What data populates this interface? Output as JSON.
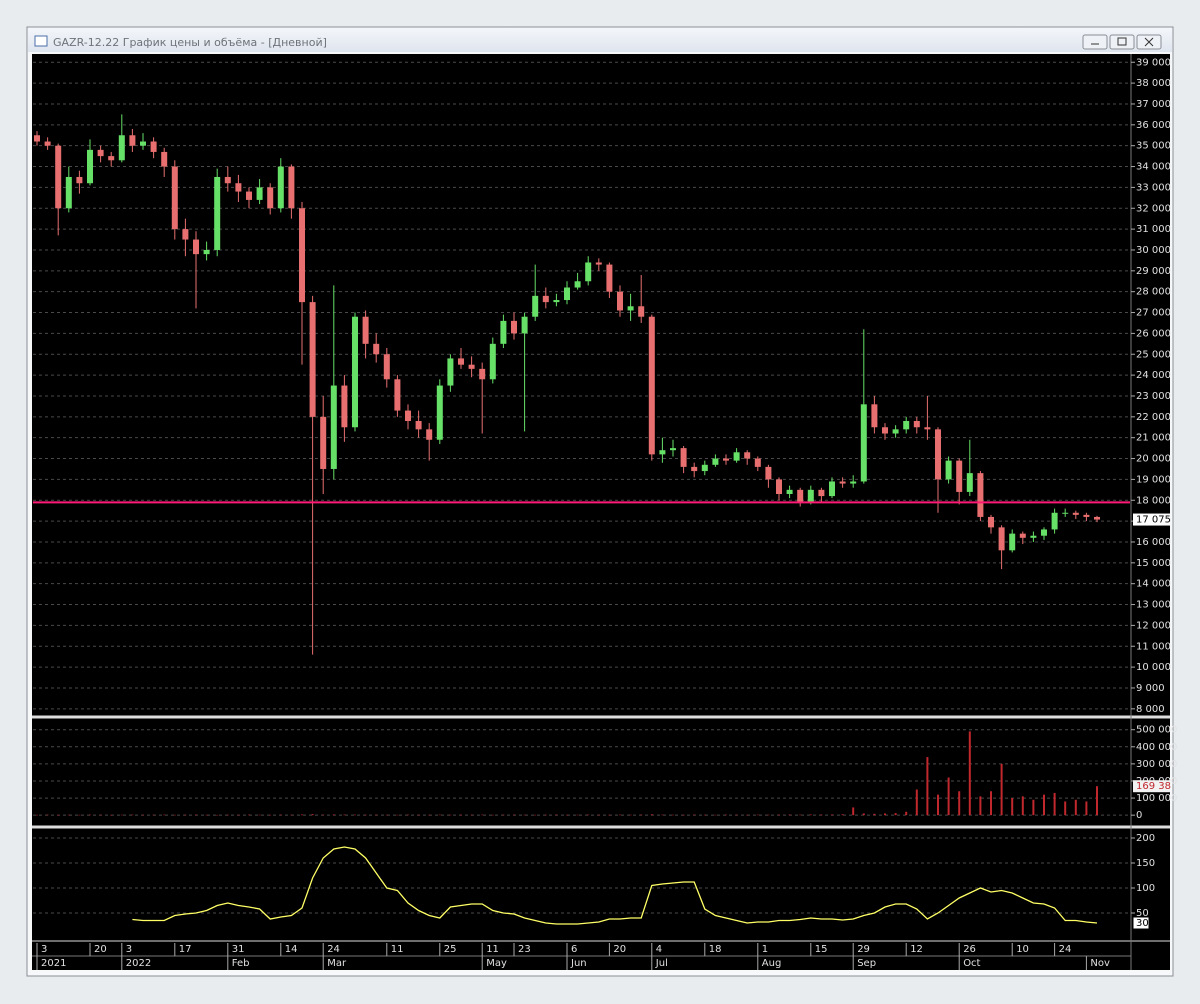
{
  "window": {
    "title": "GAZR-12.22 График цены и объёма - [Дневной]"
  },
  "chart_data": [
    {
      "type": "candlestick",
      "up_color": "#66e066",
      "down_color": "#e86f6f",
      "grid": true,
      "ylim": [
        7800,
        39300
      ],
      "yticks": [
        {
          "value": 8000,
          "label": "8 000"
        },
        {
          "value": 9000,
          "label": "9 000"
        },
        {
          "value": 10000,
          "label": "10 000"
        },
        {
          "value": 11000,
          "label": "11 000"
        },
        {
          "value": 12000,
          "label": "12 000"
        },
        {
          "value": 13000,
          "label": "13 000"
        },
        {
          "value": 14000,
          "label": "14 000"
        },
        {
          "value": 15000,
          "label": "15 000"
        },
        {
          "value": 16000,
          "label": "16 000"
        },
        {
          "value": 17000,
          "label": "17 000"
        },
        {
          "value": 18000,
          "label": "18 000"
        },
        {
          "value": 19000,
          "label": "19 000"
        },
        {
          "value": 20000,
          "label": "20 000"
        },
        {
          "value": 21000,
          "label": "21 000"
        },
        {
          "value": 22000,
          "label": "22 000"
        },
        {
          "value": 23000,
          "label": "23 000"
        },
        {
          "value": 24000,
          "label": "24 000"
        },
        {
          "value": 25000,
          "label": "25 000"
        },
        {
          "value": 26000,
          "label": "26 000"
        },
        {
          "value": 27000,
          "label": "27 000"
        },
        {
          "value": 28000,
          "label": "28 000"
        },
        {
          "value": 29000,
          "label": "29 000"
        },
        {
          "value": 30000,
          "label": "30 000"
        },
        {
          "value": 31000,
          "label": "31 000"
        },
        {
          "value": 32000,
          "label": "32 000"
        },
        {
          "value": 33000,
          "label": "33 000"
        },
        {
          "value": 34000,
          "label": "34 000"
        },
        {
          "value": 35000,
          "label": "35 000"
        },
        {
          "value": 36000,
          "label": "36 000"
        },
        {
          "value": 37000,
          "label": "37 000"
        },
        {
          "value": 38000,
          "label": "38 000"
        },
        {
          "value": 39000,
          "label": "39 000"
        }
      ],
      "hline": 17900,
      "hline_color": "#ff1a75",
      "last_label": "17 075",
      "categories": [
        "3",
        null,
        null,
        null,
        null,
        "20",
        null,
        null,
        "3",
        null,
        null,
        null,
        null,
        "17",
        null,
        null,
        null,
        null,
        "31",
        null,
        null,
        null,
        null,
        "14",
        null,
        null,
        null,
        "24",
        null,
        null,
        null,
        null,
        null,
        "11",
        null,
        null,
        null,
        null,
        "25",
        null,
        null,
        null,
        "11",
        null,
        null,
        "23",
        null,
        null,
        null,
        null,
        "6",
        null,
        null,
        null,
        "20",
        null,
        null,
        null,
        "4",
        null,
        null,
        null,
        null,
        "18",
        null,
        null,
        null,
        null,
        "1",
        null,
        null,
        null,
        null,
        "15",
        null,
        null,
        null,
        "29",
        null,
        null,
        null,
        null,
        "12",
        null,
        null,
        null,
        null,
        "26",
        null,
        null,
        null,
        null,
        "10",
        null,
        null,
        null,
        "24",
        null,
        null,
        null,
        null
      ],
      "periods": [
        "2021",
        null,
        null,
        null,
        null,
        null,
        null,
        null,
        "2022",
        null,
        null,
        null,
        null,
        null,
        null,
        null,
        null,
        null,
        "Feb",
        null,
        null,
        null,
        null,
        null,
        null,
        null,
        null,
        "Mar",
        null,
        null,
        null,
        null,
        null,
        null,
        null,
        null,
        null,
        null,
        null,
        null,
        null,
        null,
        "May",
        null,
        null,
        null,
        null,
        null,
        null,
        null,
        "Jun",
        null,
        null,
        null,
        null,
        null,
        null,
        null,
        "Jul",
        null,
        null,
        null,
        null,
        null,
        null,
        null,
        null,
        null,
        "Aug",
        null,
        null,
        null,
        null,
        null,
        null,
        null,
        null,
        "Sep",
        null,
        null,
        null,
        null,
        null,
        null,
        null,
        null,
        null,
        "Oct",
        null,
        null,
        null,
        null,
        null,
        null,
        null,
        null,
        null,
        null,
        null,
        "Nov",
        null
      ],
      "open": [
        35500,
        35200,
        35000,
        32000,
        33500,
        33200,
        34800,
        34500,
        34300,
        35500,
        35000,
        35200,
        34700,
        34000,
        31000,
        30500,
        29800,
        30000,
        33500,
        33200,
        32800,
        32400,
        33000,
        32000,
        34000,
        32000,
        27500,
        22000,
        19500,
        23500,
        21500,
        26800,
        25500,
        25000,
        23800,
        22300,
        21800,
        21400,
        20900,
        23500,
        24800,
        24500,
        24300,
        23800,
        25500,
        26600,
        26000,
        26800,
        27800,
        27500,
        27600,
        28200,
        28500,
        29400,
        29300,
        28000,
        27100,
        27300,
        26800,
        20200,
        20400,
        20500,
        19600,
        19400,
        19700,
        20000,
        19900,
        20300,
        20000,
        19600,
        19000,
        18300,
        18500,
        17900,
        18500,
        18200,
        18900,
        18800,
        18900,
        22600,
        21500,
        21200,
        21400,
        21800,
        21500,
        21400,
        19000,
        19900,
        18400,
        19300,
        17200,
        16700,
        15600,
        16400,
        16200,
        16300,
        16600,
        17400,
        17400,
        17300,
        17200
      ],
      "high": [
        35700,
        35400,
        35100,
        34000,
        33800,
        35300,
        35000,
        34700,
        36500,
        35800,
        35600,
        35400,
        34900,
        34300,
        31500,
        30900,
        30400,
        33900,
        34000,
        33600,
        33000,
        33400,
        33200,
        34400,
        34100,
        32300,
        27800,
        23000,
        28300,
        24000,
        27000,
        27100,
        26000,
        25300,
        24000,
        22600,
        22300,
        21700,
        23800,
        25000,
        25300,
        24900,
        24600,
        25800,
        26900,
        27000,
        27000,
        29300,
        28200,
        27900,
        28500,
        28900,
        29700,
        29600,
        29400,
        28300,
        27900,
        28800,
        26900,
        21000,
        20900,
        20600,
        19800,
        19900,
        20200,
        20200,
        20500,
        20400,
        20100,
        19700,
        19100,
        18700,
        18600,
        18700,
        18600,
        19100,
        19100,
        19200,
        26200,
        23000,
        21700,
        21600,
        22000,
        22000,
        23000,
        21500,
        20100,
        20000,
        20900,
        19400,
        17300,
        16800,
        16600,
        16500,
        16500,
        16700,
        17600,
        17600,
        17500,
        17400,
        17250
      ],
      "low": [
        35000,
        34800,
        30700,
        31800,
        32700,
        33100,
        34200,
        34000,
        34200,
        34700,
        34800,
        34400,
        33500,
        30500,
        29700,
        27200,
        29500,
        29700,
        32800,
        32300,
        32000,
        32200,
        31700,
        31800,
        31500,
        24500,
        10600,
        18300,
        19000,
        20800,
        21300,
        24800,
        24600,
        23400,
        22000,
        21400,
        21000,
        19900,
        20700,
        23200,
        24300,
        23900,
        21200,
        23600,
        25300,
        25700,
        21300,
        26600,
        27200,
        27300,
        27400,
        28100,
        28300,
        29000,
        27700,
        26800,
        26600,
        26500,
        19900,
        19800,
        20100,
        19300,
        19100,
        19200,
        19600,
        19700,
        19800,
        19700,
        19400,
        18600,
        18000,
        18100,
        17700,
        17800,
        17900,
        18100,
        18600,
        18600,
        18800,
        21200,
        20900,
        21000,
        21200,
        21200,
        20900,
        17400,
        18800,
        17800,
        18200,
        17000,
        16400,
        14700,
        15500,
        15900,
        16000,
        16100,
        16400,
        17200,
        17100,
        17000,
        16950
      ],
      "close": [
        35200,
        35000,
        32000,
        33500,
        33200,
        34800,
        34500,
        34300,
        35500,
        35000,
        35200,
        34700,
        34000,
        31000,
        30500,
        29800,
        30000,
        33500,
        33200,
        32800,
        32400,
        33000,
        32000,
        34000,
        32000,
        27500,
        22000,
        19500,
        23500,
        21500,
        26800,
        25500,
        25000,
        23800,
        22300,
        21800,
        21400,
        20900,
        23500,
        24800,
        24500,
        24300,
        23800,
        25500,
        26600,
        26000,
        26800,
        27800,
        27500,
        27600,
        28200,
        28500,
        29400,
        29300,
        28000,
        27100,
        27300,
        26800,
        20200,
        20400,
        20500,
        19600,
        19400,
        19700,
        20000,
        19900,
        20300,
        20000,
        19600,
        19000,
        18300,
        18500,
        17900,
        18500,
        18200,
        18900,
        18800,
        18900,
        22600,
        21500,
        21200,
        21400,
        21800,
        21500,
        21400,
        19000,
        19900,
        18400,
        19300,
        17200,
        16700,
        15600,
        16400,
        16200,
        16300,
        16600,
        17400,
        17400,
        17300,
        17200,
        17075
      ]
    },
    {
      "type": "bar",
      "color": "#c0282d",
      "grid": true,
      "ylim": [
        -40000,
        545000
      ],
      "yticks": [
        0,
        {
          "value": 100000,
          "label": "100 000"
        },
        {
          "value": 200000,
          "label": "200 000"
        },
        {
          "value": 300000,
          "label": "300 000"
        },
        {
          "value": 400000,
          "label": "400 000"
        },
        {
          "value": 500000,
          "label": "500 000"
        }
      ],
      "last_label": "169 38",
      "values": [
        2000,
        3000,
        1500,
        2500,
        2000,
        3000,
        2000,
        1500,
        2500,
        3000,
        2000,
        2500,
        3000,
        2000,
        2500,
        3000,
        2000,
        1500,
        2500,
        2000,
        3000,
        2500,
        2000,
        3000,
        2500,
        4000,
        6000,
        3000,
        4000,
        3500,
        3000,
        2500,
        3000,
        2500,
        2000,
        3000,
        2500,
        2000,
        3000,
        2500,
        2000,
        2500,
        3000,
        2000,
        2500,
        3000,
        2500,
        2000,
        2500,
        3000,
        2000,
        2500,
        3000,
        2500,
        2000,
        3000,
        2500,
        3000,
        5000,
        3000,
        2500,
        2000,
        3000,
        2500,
        2000,
        3000,
        2500,
        2000,
        3000,
        2500,
        3000,
        3500,
        3000,
        4000,
        3500,
        4000,
        5000,
        45000,
        10000,
        8000,
        10000,
        12000,
        20000,
        150000,
        340000,
        120000,
        220000,
        140000,
        490000,
        110000,
        140000,
        300000,
        100000,
        110000,
        90000,
        120000,
        130000,
        80000,
        90000,
        80000,
        169380
      ]
    },
    {
      "type": "line",
      "color": "#ffff66",
      "grid": true,
      "ylim": [
        -4,
        212
      ],
      "yticks": [
        50,
        100,
        150,
        200
      ],
      "values": [
        null,
        null,
        null,
        null,
        null,
        null,
        null,
        null,
        null,
        37,
        35,
        35,
        35,
        45,
        48,
        50,
        55,
        65,
        70,
        65,
        62,
        58,
        38,
        42,
        45,
        60,
        120,
        160,
        178,
        182,
        178,
        160,
        130,
        100,
        95,
        70,
        55,
        45,
        40,
        62,
        65,
        68,
        68,
        55,
        50,
        48,
        40,
        35,
        30,
        28,
        28,
        28,
        30,
        32,
        38,
        38,
        40,
        40,
        105,
        108,
        110,
        112,
        112,
        58,
        45,
        40,
        35,
        30,
        32,
        32,
        35,
        35,
        37,
        40,
        38,
        38,
        36,
        38,
        45,
        50,
        62,
        68,
        68,
        58,
        38,
        50,
        65,
        80,
        90,
        100,
        92,
        95,
        90,
        80,
        70,
        68,
        60,
        35,
        35,
        32,
        30
      ]
    }
  ]
}
